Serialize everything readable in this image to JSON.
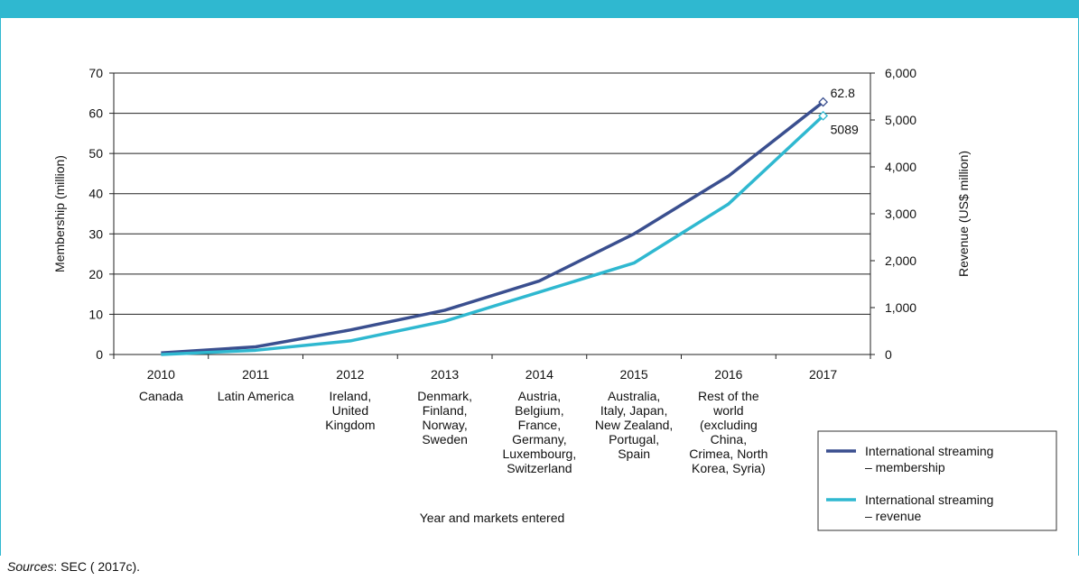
{
  "chart_data": {
    "type": "line",
    "title": "",
    "xlabel": "Year and markets entered",
    "ylabel_left": "Membership (million)",
    "ylabel_right": "Revenue (US$ million)",
    "ylim_left": [
      0,
      70
    ],
    "ylim_right": [
      0,
      6000
    ],
    "yticks_left": [
      "0",
      "10",
      "20",
      "30",
      "40",
      "50",
      "60",
      "70"
    ],
    "yticks_right": [
      "0",
      "1,000",
      "2,000",
      "3,000",
      "4,000",
      "5,000",
      "6,000"
    ],
    "categories": [
      "2010",
      "2011",
      "2012",
      "2013",
      "2014",
      "2015",
      "2016",
      "2017"
    ],
    "category_markets": [
      [
        "Canada"
      ],
      [
        "Latin America"
      ],
      [
        "Ireland,",
        "United",
        "Kingdom"
      ],
      [
        "Denmark,",
        "Finland,",
        "Norway,",
        "Sweden"
      ],
      [
        "Austria,",
        "Belgium,",
        "France,",
        "Germany,",
        "Luxembourg,",
        "Switzerland"
      ],
      [
        "Australia,",
        "Italy, Japan,",
        "New Zealand,",
        "Portugal,",
        "Spain"
      ],
      [
        "Rest of the",
        "world",
        "(excluding",
        "China,",
        "Crimea, North",
        "Korea, Syria)"
      ],
      []
    ],
    "grid": true,
    "legend_position": "bottom-right",
    "series": [
      {
        "name_lines": [
          "International streaming",
          "– membership"
        ],
        "axis": "left",
        "color": "#3a4f8f",
        "values": [
          0.4,
          1.9,
          6.1,
          11.0,
          18.3,
          30.0,
          44.4,
          62.8
        ],
        "end_label": "62.8"
      },
      {
        "name_lines": [
          "International streaming",
          "– revenue"
        ],
        "axis": "right",
        "color": "#2fb8d0",
        "values": [
          0,
          90,
          290,
          710,
          1330,
          1950,
          3210,
          5089
        ],
        "end_label": "5089"
      }
    ]
  },
  "source": {
    "prefix": "Sources",
    "text": ": SEC ( 2017c)."
  }
}
